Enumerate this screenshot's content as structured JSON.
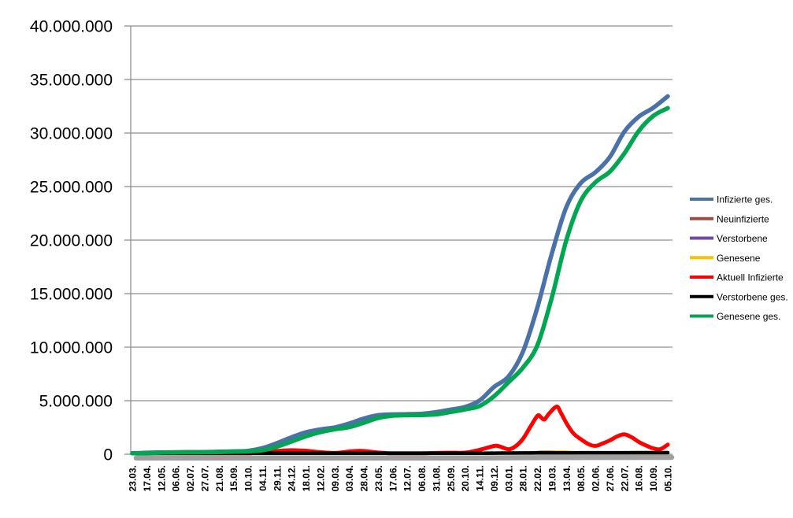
{
  "chart_data": {
    "type": "line",
    "title": "",
    "unit": "persons",
    "x_axis": {
      "labels": [
        "23.03.",
        "17.04.",
        "12.05.",
        "06.06.",
        "02.07.",
        "27.07.",
        "21.08.",
        "15.09.",
        "10.10.",
        "04.11.",
        "29.11.",
        "24.12.",
        "18.01.",
        "12.02.",
        "09.03.",
        "03.04.",
        "28.04.",
        "23.05.",
        "17.06.",
        "12.07.",
        "06.08.",
        "31.08.",
        "25.09.",
        "20.10.",
        "14.11.",
        "09.12.",
        "03.01.",
        "28.01.",
        "22.02.",
        "19.03.",
        "13.04.",
        "08.05.",
        "02.06.",
        "27.06.",
        "22.07.",
        "16.08.",
        "10.09.",
        "05.10."
      ],
      "label_interval_days": 25,
      "span_days": 925
    },
    "y_axis": {
      "min": 0,
      "max": 40000000,
      "step": 5000000,
      "tick_labels": [
        "0",
        "5.000.000",
        "10.000.000",
        "15.000.000",
        "20.000.000",
        "25.000.000",
        "30.000.000",
        "35.000.000",
        "40.000.000"
      ]
    },
    "grid": true,
    "grid_color": "#8E8E8E",
    "axis_color": "#8E8E8E",
    "shadow_color": "#A0A0A0",
    "legend_position": "right",
    "series": [
      {
        "name": "Infizierte ges.",
        "color": "#4A72A8",
        "width": 5.5,
        "values": [
          29000,
          141000,
          172000,
          184000,
          196000,
          206000,
          232000,
          266000,
          319000,
          577000,
          1042000,
          1587000,
          2053000,
          2321000,
          2509000,
          2873000,
          3332000,
          3646000,
          3723000,
          3741000,
          3780000,
          3934000,
          4171000,
          4417000,
          5022000,
          6291000,
          7274000,
          9600000,
          13762000,
          18810000,
          23117000,
          25342000,
          26336000,
          27771000,
          30131000,
          31535000,
          32357000,
          33437000
        ]
      },
      {
        "name": "Neuinfizierte",
        "color": "#9E4A45",
        "width": 3,
        "values": [
          4000,
          3000,
          1000,
          300,
          400,
          800,
          1500,
          2000,
          4000,
          17000,
          18000,
          25000,
          12000,
          8000,
          9000,
          18000,
          21000,
          7000,
          1000,
          600,
          3000,
          9000,
          8000,
          12000,
          40000,
          55000,
          30000,
          120000,
          200000,
          250000,
          160000,
          90000,
          45000,
          90000,
          120000,
          55000,
          35000,
          80000
        ]
      },
      {
        "name": "Verstorbene",
        "color": "#7049A3",
        "width": 3,
        "values": [
          100,
          300,
          100,
          50,
          30,
          20,
          30,
          40,
          60,
          200,
          400,
          700,
          900,
          600,
          300,
          200,
          300,
          200,
          100,
          50,
          30,
          50,
          100,
          100,
          200,
          400,
          400,
          200,
          200,
          300,
          300,
          200,
          100,
          100,
          100,
          100,
          100,
          100
        ]
      },
      {
        "name": "Genesene",
        "color": "#FFC000",
        "width": 3,
        "values": [
          2000,
          3000,
          2000,
          1000,
          500,
          500,
          1000,
          1500,
          3000,
          8000,
          15000,
          20000,
          17000,
          12000,
          8000,
          12000,
          19000,
          12000,
          3000,
          1000,
          1500,
          5000,
          8000,
          10000,
          25000,
          45000,
          40000,
          80000,
          160000,
          230000,
          250000,
          130000,
          60000,
          70000,
          100000,
          80000,
          40000,
          60000
        ]
      },
      {
        "name": "Aktuell Infizierte",
        "color": "#FF0000",
        "width": 5,
        "points": [
          [
            0,
            22000
          ],
          [
            25,
            51000
          ],
          [
            50,
            17000
          ],
          [
            75,
            7000
          ],
          [
            100,
            7000
          ],
          [
            125,
            10000
          ],
          [
            150,
            16000
          ],
          [
            175,
            22000
          ],
          [
            200,
            45000
          ],
          [
            225,
            190000
          ],
          [
            250,
            305000
          ],
          [
            275,
            375000
          ],
          [
            290,
            350000
          ],
          [
            300,
            330000
          ],
          [
            325,
            190000
          ],
          [
            350,
            115000
          ],
          [
            375,
            260000
          ],
          [
            390,
            315000
          ],
          [
            400,
            300000
          ],
          [
            425,
            165000
          ],
          [
            450,
            45000
          ],
          [
            475,
            13000
          ],
          [
            500,
            30000
          ],
          [
            525,
            120000
          ],
          [
            550,
            140000
          ],
          [
            575,
            150000
          ],
          [
            600,
            410000
          ],
          [
            625,
            770000
          ],
          [
            635,
            720000
          ],
          [
            650,
            460000
          ],
          [
            662,
            750000
          ],
          [
            675,
            1450000
          ],
          [
            688,
            2600000
          ],
          [
            700,
            3600000
          ],
          [
            706,
            3450000
          ],
          [
            712,
            3250000
          ],
          [
            720,
            3800000
          ],
          [
            733,
            4450000
          ],
          [
            740,
            3900000
          ],
          [
            750,
            2900000
          ],
          [
            762,
            1950000
          ],
          [
            775,
            1400000
          ],
          [
            788,
            950000
          ],
          [
            800,
            780000
          ],
          [
            812,
            1000000
          ],
          [
            825,
            1300000
          ],
          [
            838,
            1680000
          ],
          [
            850,
            1850000
          ],
          [
            862,
            1600000
          ],
          [
            875,
            1150000
          ],
          [
            888,
            800000
          ],
          [
            900,
            550000
          ],
          [
            912,
            470000
          ],
          [
            925,
            900000
          ]
        ]
      },
      {
        "name": "Verstorbene ges.",
        "color": "#000000",
        "width": 4.5,
        "shadow": true,
        "values": [
          100,
          4000,
          7700,
          8700,
          9000,
          9100,
          9300,
          9400,
          9600,
          11000,
          16000,
          29000,
          48000,
          64000,
          72000,
          77000,
          83000,
          88000,
          90000,
          91000,
          92000,
          92500,
          93000,
          95000,
          98000,
          105000,
          113000,
          118000,
          122000,
          127000,
          132000,
          137000,
          139000,
          141000,
          143000,
          146000,
          148000,
          150000
        ]
      },
      {
        "name": "Genesene ges.",
        "color": "#00A650",
        "width": 5.5,
        "values": [
          3000,
          85000,
          148000,
          168000,
          181000,
          190000,
          207000,
          236000,
          268000,
          372000,
          713000,
          1184000,
          1680000,
          2069000,
          2328000,
          2540000,
          2941000,
          3391000,
          3600000,
          3640000,
          3660000,
          3725000,
          3945000,
          4190000,
          4510000,
          5425000,
          6735000,
          8100000,
          10214000,
          14700000,
          20050000,
          23700000,
          25400000,
          26400000,
          28100000,
          30200000,
          31600000,
          32330000
        ]
      }
    ]
  }
}
